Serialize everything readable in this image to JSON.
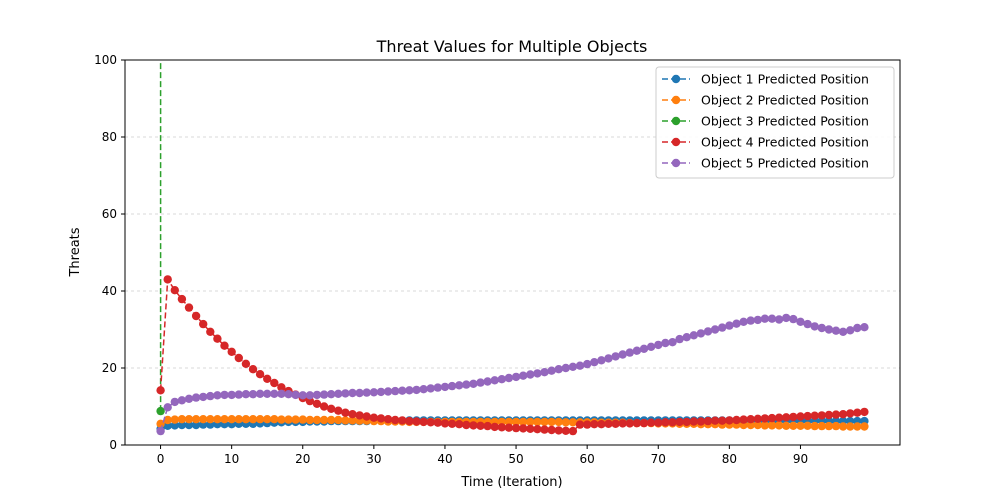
{
  "chart_data": {
    "type": "line",
    "title": "Threat Values for Multiple Objects",
    "xlabel": "Time (Iteration)",
    "ylabel": "Threats",
    "xlim": [
      -5,
      104
    ],
    "ylim": [
      0,
      100
    ],
    "xticks": [
      0,
      10,
      20,
      30,
      40,
      50,
      60,
      70,
      80,
      90
    ],
    "yticks": [
      0,
      20,
      40,
      60,
      80,
      100
    ],
    "grid": "y-dashed",
    "legend_position": "top-right",
    "series": [
      {
        "name": "Object 1 Predicted Position",
        "color": "#1f77b4",
        "x": [
          0,
          1,
          2,
          3,
          4,
          5,
          6,
          7,
          8,
          9,
          10,
          11,
          12,
          13,
          14,
          15,
          16,
          17,
          18,
          19,
          20,
          21,
          22,
          23,
          24,
          25,
          26,
          27,
          28,
          29,
          30,
          31,
          32,
          33,
          34,
          35,
          36,
          37,
          38,
          39,
          40,
          41,
          42,
          43,
          44,
          45,
          46,
          47,
          48,
          49,
          50,
          51,
          52,
          53,
          54,
          55,
          56,
          57,
          58,
          59,
          60,
          61,
          62,
          63,
          64,
          65,
          66,
          67,
          68,
          69,
          70,
          71,
          72,
          73,
          74,
          75,
          76,
          77,
          78,
          79,
          80,
          81,
          82,
          83,
          84,
          85,
          86,
          87,
          88,
          89,
          90,
          91,
          92,
          93,
          94,
          95,
          96,
          97,
          98,
          99
        ],
        "y": [
          4.2,
          5.0,
          5.1,
          5.2,
          5.2,
          5.2,
          5.3,
          5.3,
          5.4,
          5.4,
          5.4,
          5.5,
          5.5,
          5.5,
          5.6,
          5.7,
          5.8,
          5.9,
          6.0,
          6.0,
          6.0,
          6.1,
          6.1,
          6.1,
          6.2,
          6.2,
          6.2,
          6.2,
          6.2,
          6.2,
          6.3,
          6.3,
          6.3,
          6.3,
          6.3,
          6.4,
          6.4,
          6.4,
          6.4,
          6.4,
          6.4,
          6.4,
          6.4,
          6.4,
          6.4,
          6.4,
          6.4,
          6.4,
          6.4,
          6.4,
          6.4,
          6.4,
          6.4,
          6.4,
          6.4,
          6.4,
          6.4,
          6.4,
          6.4,
          6.4,
          6.4,
          6.4,
          6.4,
          6.4,
          6.4,
          6.4,
          6.4,
          6.4,
          6.4,
          6.4,
          6.4,
          6.4,
          6.4,
          6.4,
          6.4,
          6.4,
          6.4,
          6.4,
          6.4,
          6.4,
          6.4,
          6.4,
          6.4,
          6.4,
          6.4,
          6.4,
          6.3,
          6.3,
          6.3,
          6.3,
          6.3,
          6.3,
          6.3,
          6.3,
          6.2,
          6.2,
          6.2,
          6.2,
          6.2,
          6.2
        ]
      },
      {
        "name": "Object 2 Predicted Position",
        "color": "#ff7f0e",
        "x": [
          0,
          1,
          2,
          3,
          4,
          5,
          6,
          7,
          8,
          9,
          10,
          11,
          12,
          13,
          14,
          15,
          16,
          17,
          18,
          19,
          20,
          21,
          22,
          23,
          24,
          25,
          26,
          27,
          28,
          29,
          30,
          31,
          32,
          33,
          34,
          35,
          36,
          37,
          38,
          39,
          40,
          41,
          42,
          43,
          44,
          45,
          46,
          47,
          48,
          49,
          50,
          51,
          52,
          53,
          54,
          55,
          56,
          57,
          58,
          59,
          60,
          61,
          62,
          63,
          64,
          65,
          66,
          67,
          68,
          69,
          70,
          71,
          72,
          73,
          74,
          75,
          76,
          77,
          78,
          79,
          80,
          81,
          82,
          83,
          84,
          85,
          86,
          87,
          88,
          89,
          90,
          91,
          92,
          93,
          94,
          95,
          96,
          97,
          98,
          99
        ],
        "y": [
          5.5,
          6.5,
          6.6,
          6.7,
          6.7,
          6.7,
          6.7,
          6.7,
          6.7,
          6.7,
          6.7,
          6.7,
          6.7,
          6.7,
          6.7,
          6.7,
          6.7,
          6.6,
          6.6,
          6.6,
          6.6,
          6.5,
          6.5,
          6.5,
          6.5,
          6.5,
          6.4,
          6.4,
          6.3,
          6.3,
          6.2,
          6.2,
          6.1,
          6.1,
          6.1,
          6.0,
          6.0,
          6.0,
          6.0,
          6.0,
          6.0,
          6.0,
          6.0,
          6.0,
          6.0,
          6.0,
          6.0,
          6.0,
          6.0,
          6.0,
          6.0,
          6.0,
          6.0,
          6.0,
          6.0,
          6.0,
          6.0,
          5.9,
          5.9,
          5.9,
          5.9,
          5.9,
          5.8,
          5.8,
          5.8,
          5.8,
          5.7,
          5.7,
          5.7,
          5.7,
          5.6,
          5.6,
          5.6,
          5.5,
          5.5,
          5.5,
          5.4,
          5.4,
          5.4,
          5.3,
          5.3,
          5.3,
          5.2,
          5.2,
          5.2,
          5.1,
          5.1,
          5.1,
          5.0,
          5.0,
          5.0,
          5.0,
          4.9,
          4.9,
          4.9,
          4.9,
          4.8,
          4.8,
          4.8,
          4.8
        ]
      },
      {
        "name": "Object 3 Predicted Position",
        "color": "#2ca02c",
        "x": [
          0,
          0.0
        ],
        "y": [
          8.8,
          100
        ]
      },
      {
        "name": "Object 4 Predicted Position",
        "color": "#d62728",
        "x": [
          0,
          1,
          2,
          3,
          4,
          5,
          6,
          7,
          8,
          9,
          10,
          11,
          12,
          13,
          14,
          15,
          16,
          17,
          18,
          19,
          20,
          21,
          22,
          23,
          24,
          25,
          26,
          27,
          28,
          29,
          30,
          31,
          32,
          33,
          34,
          35,
          36,
          37,
          38,
          39,
          40,
          41,
          42,
          43,
          44,
          45,
          46,
          47,
          48,
          49,
          50,
          51,
          52,
          53,
          54,
          55,
          56,
          57,
          58,
          59,
          60,
          61,
          62,
          63,
          64,
          65,
          66,
          67,
          68,
          69,
          70,
          71,
          72,
          73,
          74,
          75,
          76,
          77,
          78,
          79,
          80,
          81,
          82,
          83,
          84,
          85,
          86,
          87,
          88,
          89,
          90,
          91,
          92,
          93,
          94,
          95,
          96,
          97,
          98,
          99
        ],
        "y": [
          14.2,
          43.0,
          40.2,
          37.9,
          35.7,
          33.5,
          31.4,
          29.4,
          27.6,
          25.8,
          24.2,
          22.6,
          21.1,
          19.7,
          18.4,
          17.2,
          16.1,
          15.0,
          14.0,
          13.1,
          12.2,
          11.4,
          10.7,
          10.0,
          9.4,
          8.9,
          8.4,
          8.0,
          7.7,
          7.4,
          7.1,
          6.9,
          6.7,
          6.5,
          6.4,
          6.2,
          6.1,
          6.0,
          5.9,
          5.8,
          5.6,
          5.5,
          5.4,
          5.2,
          5.1,
          5.0,
          4.9,
          4.7,
          4.6,
          4.5,
          4.4,
          4.3,
          4.2,
          4.1,
          4.0,
          3.9,
          3.8,
          3.7,
          3.6,
          5.3,
          5.3,
          5.4,
          5.4,
          5.5,
          5.5,
          5.6,
          5.6,
          5.7,
          5.7,
          5.8,
          5.8,
          5.9,
          5.9,
          6.0,
          6.0,
          6.1,
          6.1,
          6.2,
          6.3,
          6.3,
          6.4,
          6.5,
          6.6,
          6.7,
          6.8,
          6.9,
          7.0,
          7.1,
          7.2,
          7.3,
          7.4,
          7.5,
          7.6,
          7.7,
          7.8,
          7.9,
          8.0,
          8.2,
          8.4,
          8.6
        ]
      },
      {
        "name": "Object 5 Predicted Position",
        "color": "#9467bd",
        "x": [
          0,
          1,
          2,
          3,
          4,
          5,
          6,
          7,
          8,
          9,
          10,
          11,
          12,
          13,
          14,
          15,
          16,
          17,
          18,
          19,
          20,
          21,
          22,
          23,
          24,
          25,
          26,
          27,
          28,
          29,
          30,
          31,
          32,
          33,
          34,
          35,
          36,
          37,
          38,
          39,
          40,
          41,
          42,
          43,
          44,
          45,
          46,
          47,
          48,
          49,
          50,
          51,
          52,
          53,
          54,
          55,
          56,
          57,
          58,
          59,
          60,
          61,
          62,
          63,
          64,
          65,
          66,
          67,
          68,
          69,
          70,
          71,
          72,
          73,
          74,
          75,
          76,
          77,
          78,
          79,
          80,
          81,
          82,
          83,
          84,
          85,
          86,
          87,
          88,
          89,
          90,
          91,
          92,
          93,
          94,
          95,
          96,
          97,
          98,
          99
        ],
        "y": [
          3.6,
          9.8,
          11.2,
          11.6,
          12.0,
          12.3,
          12.5,
          12.7,
          12.9,
          13.0,
          13.0,
          13.1,
          13.2,
          13.2,
          13.3,
          13.3,
          13.3,
          13.3,
          13.2,
          13.0,
          12.9,
          12.9,
          13.0,
          13.1,
          13.2,
          13.3,
          13.4,
          13.5,
          13.5,
          13.6,
          13.7,
          13.8,
          13.9,
          14.0,
          14.1,
          14.2,
          14.3,
          14.5,
          14.7,
          14.9,
          15.1,
          15.3,
          15.5,
          15.7,
          15.9,
          16.2,
          16.5,
          16.8,
          17.1,
          17.4,
          17.7,
          18.0,
          18.3,
          18.6,
          18.9,
          19.3,
          19.7,
          20.0,
          20.3,
          20.6,
          21.0,
          21.5,
          22.0,
          22.5,
          23.0,
          23.5,
          24.0,
          24.5,
          25.0,
          25.5,
          26.0,
          26.5,
          26.7,
          27.5,
          28.0,
          28.5,
          29.0,
          29.5,
          30.0,
          30.5,
          31.0,
          31.5,
          32.0,
          32.3,
          32.5,
          32.8,
          32.8,
          32.6,
          33.0,
          32.7,
          32.0,
          31.4,
          30.8,
          30.4,
          30.0,
          29.7,
          29.4,
          29.8,
          30.4,
          30.6
        ]
      }
    ]
  }
}
